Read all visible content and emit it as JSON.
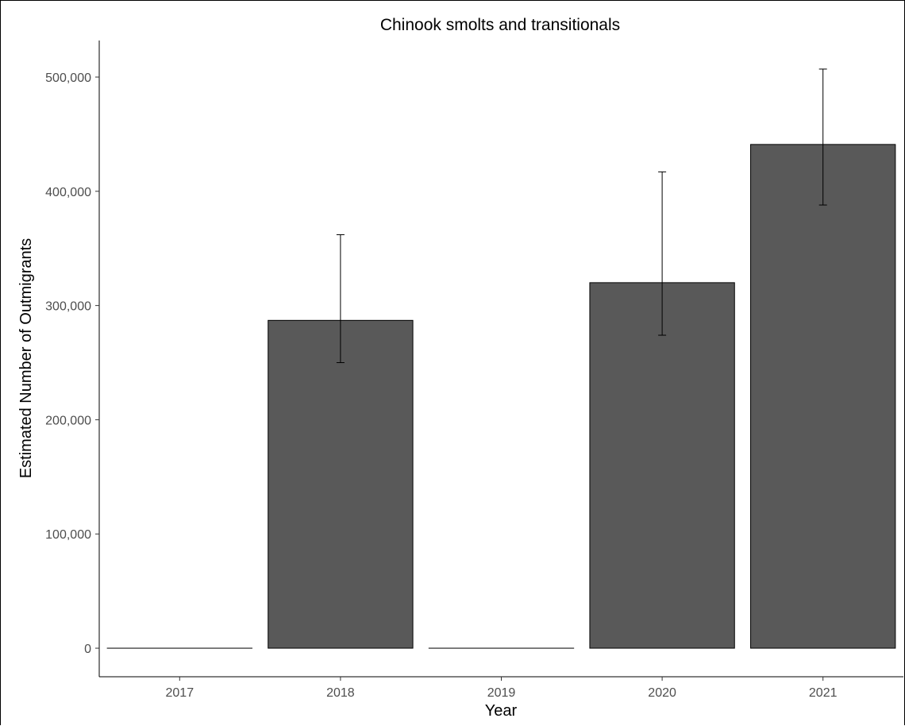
{
  "chart_data": {
    "type": "bar",
    "title": "Chinook smolts and transitionals",
    "xlabel": "Year",
    "ylabel": "Estimated Number of Outmigrants",
    "categories": [
      "2017",
      "2018",
      "2019",
      "2020",
      "2021"
    ],
    "values": [
      0,
      287000,
      0,
      320000,
      441000
    ],
    "error_low": [
      null,
      250000,
      null,
      274000,
      388000
    ],
    "error_high": [
      null,
      362000,
      null,
      417000,
      507000
    ],
    "ylim": [
      -25000,
      532000
    ],
    "yticks": [
      0,
      100000,
      200000,
      300000,
      400000,
      500000
    ],
    "ytick_labels": [
      "0",
      "100,000",
      "200,000",
      "300,000",
      "400,000",
      "500,000"
    ],
    "grid": false,
    "bar_color": "#595959",
    "bar_outline": "#000000"
  }
}
